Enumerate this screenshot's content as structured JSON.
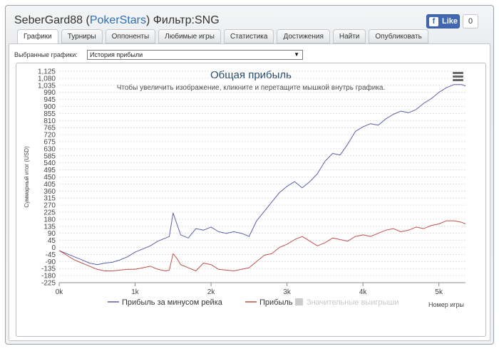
{
  "window": {
    "title_user": "SeberGard88",
    "title_open_paren": "(",
    "title_site": "PokerStars",
    "title_close_paren": ")",
    "title_filter": "Фильтр:SNG",
    "fb_like_label": "Like",
    "fb_like_count": "0"
  },
  "tabs": [
    {
      "label": "Графики",
      "active": true
    },
    {
      "label": "Турниры"
    },
    {
      "label": "Оппоненты"
    },
    {
      "label": "Любимые игры"
    },
    {
      "label": "Статистика"
    },
    {
      "label": "Достижения"
    },
    {
      "label": "Найти"
    },
    {
      "label": "Опубликовать"
    }
  ],
  "graph_selector": {
    "label": "Выбранные графики:",
    "value": "История прибыли"
  },
  "chart_data": {
    "type": "line",
    "title": "Общая прибыль",
    "subtitle": "Чтобы увеличить изображение, кликните и перетащите мышкой внутрь графика.",
    "ylabel": "Суммарный итог (USD)",
    "xlabel": "Номер игры",
    "xlim": [
      0,
      5350
    ],
    "ylim": [
      -225,
      1125
    ],
    "x_ticks": [
      "0k",
      "1k",
      "2k",
      "3k",
      "4k",
      "5k"
    ],
    "y_ticks": [
      "1,125",
      "1,080",
      "1,035",
      "990",
      "945",
      "900",
      "855",
      "810",
      "765",
      "720",
      "675",
      "630",
      "585",
      "540",
      "495",
      "450",
      "405",
      "360",
      "315",
      "270",
      "225",
      "180",
      "135",
      "90",
      "45",
      "0",
      "-45",
      "-90",
      "-135",
      "-180",
      "-225"
    ],
    "grid": true,
    "legend_position": "bottom-center",
    "series": [
      {
        "name": "Прибыль за минусом рейка",
        "color": "#5b5ea6",
        "x": [
          0,
          100,
          200,
          300,
          400,
          500,
          600,
          700,
          800,
          900,
          1000,
          1100,
          1200,
          1300,
          1400,
          1450,
          1500,
          1550,
          1600,
          1700,
          1800,
          1900,
          2000,
          2100,
          2200,
          2300,
          2400,
          2500,
          2600,
          2700,
          2800,
          2900,
          3000,
          3100,
          3200,
          3300,
          3400,
          3500,
          3600,
          3700,
          3800,
          3900,
          4000,
          4100,
          4200,
          4300,
          4400,
          4500,
          4600,
          4700,
          4800,
          4900,
          5000,
          5100,
          5200,
          5300,
          5350
        ],
        "values": [
          -20,
          -40,
          -60,
          -80,
          -100,
          -110,
          -100,
          -95,
          -80,
          -60,
          -30,
          -10,
          10,
          40,
          60,
          70,
          220,
          150,
          80,
          60,
          120,
          110,
          130,
          100,
          90,
          100,
          90,
          70,
          170,
          230,
          290,
          350,
          390,
          420,
          380,
          420,
          470,
          550,
          600,
          590,
          660,
          740,
          770,
          790,
          780,
          820,
          850,
          870,
          860,
          880,
          920,
          950,
          990,
          1020,
          1040,
          1040,
          1030
        ]
      },
      {
        "name": "Прибыль",
        "color": "#c0504d",
        "x": [
          0,
          100,
          200,
          300,
          400,
          500,
          600,
          700,
          800,
          900,
          1000,
          1100,
          1200,
          1300,
          1400,
          1450,
          1500,
          1550,
          1600,
          1700,
          1800,
          1900,
          2000,
          2100,
          2200,
          2300,
          2400,
          2500,
          2600,
          2700,
          2800,
          2900,
          3000,
          3100,
          3200,
          3300,
          3400,
          3500,
          3600,
          3700,
          3800,
          3900,
          4000,
          4100,
          4200,
          4300,
          4400,
          4500,
          4600,
          4700,
          4800,
          4900,
          5000,
          5100,
          5200,
          5300,
          5350
        ],
        "values": [
          -20,
          -50,
          -80,
          -100,
          -120,
          -140,
          -150,
          -150,
          -145,
          -140,
          -140,
          -130,
          -120,
          -140,
          -150,
          -145,
          -40,
          -70,
          -110,
          -130,
          -150,
          -100,
          -110,
          -140,
          -145,
          -150,
          -140,
          -130,
          -90,
          -50,
          -40,
          0,
          20,
          50,
          70,
          40,
          10,
          30,
          60,
          50,
          40,
          70,
          80,
          70,
          90,
          110,
          120,
          100,
          110,
          130,
          120,
          140,
          150,
          170,
          170,
          160,
          150
        ]
      },
      {
        "name": "Значительные выигрыши",
        "color": "#cccccc",
        "hidden": true,
        "x": [],
        "values": []
      }
    ]
  }
}
